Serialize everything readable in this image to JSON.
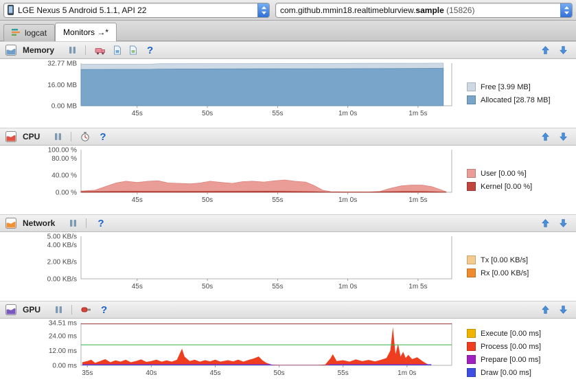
{
  "help_label": "?",
  "topbar": {
    "device": "LGE Nexus 5 Android 5.1.1, API 22",
    "process_prefix": "com.github.mmin18.realtimeblurview.",
    "process_bold": "sample",
    "process_suffix": " (15826)"
  },
  "tabs": [
    {
      "label": "logcat"
    },
    {
      "label": "Monitors →*"
    }
  ],
  "panels": [
    {
      "title": "Memory",
      "accent": "#6f9fc8",
      "toolbar_icons": [
        "pause-icon",
        "initiate-gc-icon",
        "dump-java-heap-icon",
        "allocation-tracking-icon",
        "help-icon"
      ],
      "legend": [
        {
          "label": "Free [3.99 MB]",
          "color": "#cdd9e4"
        },
        {
          "label": "Allocated [28.78 MB]",
          "color": "#78a5c9"
        }
      ]
    },
    {
      "title": "CPU",
      "accent": "#e05045",
      "toolbar_icons": [
        "pause-icon",
        "method-trace-icon",
        "help-icon"
      ],
      "legend": [
        {
          "label": "User [0.00 %]",
          "color": "#ea9c96"
        },
        {
          "label": "Kernel [0.00 %]",
          "color": "#c2453d"
        }
      ]
    },
    {
      "title": "Network",
      "accent": "#f2903a",
      "toolbar_icons": [
        "pause-icon",
        "help-icon"
      ],
      "legend": [
        {
          "label": "Tx [0.00 KB/s]",
          "color": "#f5ca8e"
        },
        {
          "label": "Rx [0.00 KB/s]",
          "color": "#ef8a2e"
        }
      ]
    },
    {
      "title": "GPU",
      "accent": "#7b57c0",
      "toolbar_icons": [
        "pause-icon",
        "gpu-record-icon",
        "help-icon"
      ],
      "legend": [
        {
          "label": "Execute [0.00 ms]",
          "color": "#f0b400"
        },
        {
          "label": "Process [0.00 ms]",
          "color": "#ee3d1f"
        },
        {
          "label": "Prepare [0.00 ms]",
          "color": "#a020c0"
        },
        {
          "label": "Draw [0.00 ms]",
          "color": "#3d4ee0"
        }
      ]
    }
  ],
  "chart_data": [
    {
      "type": "area",
      "title": "Memory",
      "ylabel": "MB",
      "xlim": [
        41,
        67.4
      ],
      "ylim": [
        0,
        32.77
      ],
      "yticks": [
        {
          "v": 32.77,
          "label": "32.77 MB"
        },
        {
          "v": 16,
          "label": "16.00 MB"
        },
        {
          "v": 0,
          "label": "0.00 MB"
        }
      ],
      "xticks": [
        {
          "v": 45,
          "label": "45s"
        },
        {
          "v": 50,
          "label": "50s"
        },
        {
          "v": 55,
          "label": "55s"
        },
        {
          "v": 60,
          "label": "1m 0s"
        },
        {
          "v": 65,
          "label": "1m 5s"
        }
      ],
      "series": [
        {
          "name": "Free (total)",
          "color": "#cdd9e4",
          "stroke": "#a9bccb",
          "points": [
            [
              41,
              31.9
            ],
            [
              44,
              32.0
            ],
            [
              46,
              32.05
            ],
            [
              46.6,
              32.4
            ],
            [
              50,
              32.45
            ],
            [
              54,
              32.5
            ],
            [
              58,
              32.55
            ],
            [
              62,
              32.65
            ],
            [
              65,
              32.72
            ],
            [
              66.8,
              32.77
            ]
          ]
        },
        {
          "name": "Allocated",
          "color": "#78a5c9",
          "stroke": "#5e8cb2",
          "points": [
            [
              41,
              27.9
            ],
            [
              44,
              28.0
            ],
            [
              46,
              28.05
            ],
            [
              46.6,
              28.25
            ],
            [
              50,
              28.35
            ],
            [
              54,
              28.45
            ],
            [
              58,
              28.5
            ],
            [
              62,
              28.6
            ],
            [
              65,
              28.7
            ],
            [
              66.8,
              28.78
            ]
          ]
        }
      ],
      "hlines": []
    },
    {
      "type": "area",
      "title": "CPU",
      "ylabel": "%",
      "xlim": [
        41,
        67.4
      ],
      "ylim": [
        0,
        100
      ],
      "yticks": [
        {
          "v": 100,
          "label": "100.00 %"
        },
        {
          "v": 80,
          "label": "80.00 %"
        },
        {
          "v": 40,
          "label": "40.00 %"
        },
        {
          "v": 0,
          "label": "0.00 %"
        }
      ],
      "xticks": [
        {
          "v": 45,
          "label": "45s"
        },
        {
          "v": 50,
          "label": "50s"
        },
        {
          "v": 55,
          "label": "55s"
        },
        {
          "v": 60,
          "label": "1m 0s"
        },
        {
          "v": 65,
          "label": "1m 5s"
        }
      ],
      "series": [
        {
          "name": "User",
          "color": "#ea9c96",
          "stroke": "#dd837c",
          "points": [
            [
              41,
              3
            ],
            [
              42,
              5
            ],
            [
              42.8,
              14
            ],
            [
              43.5,
              22
            ],
            [
              44.2,
              26
            ],
            [
              45,
              23
            ],
            [
              45.8,
              26
            ],
            [
              46.5,
              27
            ],
            [
              47.2,
              22
            ],
            [
              48,
              21
            ],
            [
              48.8,
              20
            ],
            [
              49.5,
              22
            ],
            [
              50.2,
              26
            ],
            [
              51,
              23
            ],
            [
              51.8,
              21
            ],
            [
              52.5,
              25
            ],
            [
              53.2,
              26
            ],
            [
              54,
              24
            ],
            [
              54.8,
              27
            ],
            [
              55.5,
              29
            ],
            [
              56.2,
              26
            ],
            [
              57,
              24
            ],
            [
              57.6,
              16
            ],
            [
              58.2,
              5
            ],
            [
              58.8,
              1.5
            ],
            [
              60,
              0.8
            ],
            [
              61.5,
              0.8
            ],
            [
              62.3,
              2
            ],
            [
              63,
              9
            ],
            [
              63.8,
              15
            ],
            [
              64.5,
              17
            ],
            [
              65.3,
              17
            ],
            [
              66,
              13
            ],
            [
              66.6,
              6
            ],
            [
              67,
              1.5
            ]
          ]
        },
        {
          "name": "Kernel",
          "color": "#c2453d",
          "stroke": "#a83830",
          "points": [
            [
              41,
              1.5
            ],
            [
              44,
              2.2
            ],
            [
              48,
              2
            ],
            [
              52,
              2.3
            ],
            [
              55,
              2.4
            ],
            [
              57.5,
              1.5
            ],
            [
              58.5,
              0.5
            ],
            [
              61.5,
              0.5
            ],
            [
              62.5,
              1.2
            ],
            [
              64,
              2
            ],
            [
              65.5,
              1.8
            ],
            [
              66.5,
              0.8
            ],
            [
              67,
              0.3
            ]
          ]
        }
      ],
      "hlines": []
    },
    {
      "type": "area",
      "title": "Network",
      "ylabel": "KB/s",
      "xlim": [
        41,
        67.4
      ],
      "ylim": [
        0,
        5
      ],
      "yticks": [
        {
          "v": 5,
          "label": "5.00 KB/s"
        },
        {
          "v": 4,
          "label": "4.00 KB/s"
        },
        {
          "v": 2,
          "label": "2.00 KB/s"
        },
        {
          "v": 0,
          "label": "0.00 KB/s"
        }
      ],
      "xticks": [
        {
          "v": 45,
          "label": "45s"
        },
        {
          "v": 50,
          "label": "50s"
        },
        {
          "v": 55,
          "label": "55s"
        },
        {
          "v": 60,
          "label": "1m 0s"
        },
        {
          "v": 65,
          "label": "1m 5s"
        }
      ],
      "series": [
        {
          "name": "Tx",
          "color": "#f5ca8e",
          "stroke": "none",
          "points": [
            [
              41,
              0
            ],
            [
              67,
              0
            ]
          ]
        },
        {
          "name": "Rx",
          "color": "#ef8a2e",
          "stroke": "none",
          "points": [
            [
              41,
              0
            ],
            [
              67,
              0
            ]
          ]
        }
      ],
      "hlines": []
    },
    {
      "type": "area",
      "title": "GPU",
      "ylabel": "ms",
      "xlim": [
        34.5,
        63.5
      ],
      "ylim": [
        0,
        34.51
      ],
      "yticks": [
        {
          "v": 34.51,
          "label": "34.51 ms"
        },
        {
          "v": 24,
          "label": "24.00 ms"
        },
        {
          "v": 12,
          "label": "12.00 ms"
        },
        {
          "v": 0,
          "label": "0.00 ms"
        }
      ],
      "xticks": [
        {
          "v": 35,
          "label": "35s"
        },
        {
          "v": 40,
          "label": "40s"
        },
        {
          "v": 45,
          "label": "45s"
        },
        {
          "v": 50,
          "label": "50s"
        },
        {
          "v": 55,
          "label": "55s"
        },
        {
          "v": 60,
          "label": "1m 0s"
        }
      ],
      "series": [
        {
          "name": "Execute",
          "color": "#f0b400",
          "stroke": "none",
          "points": [
            [
              34.6,
              0
            ],
            [
              61.9,
              0
            ]
          ]
        },
        {
          "name": "Process",
          "color": "#ee3d1f",
          "stroke": "none",
          "points": [
            [
              34.6,
              2.5
            ],
            [
              35,
              3.5
            ],
            [
              35.3,
              4.5
            ],
            [
              35.6,
              2
            ],
            [
              36,
              3.5
            ],
            [
              36.4,
              5
            ],
            [
              36.8,
              2.5
            ],
            [
              37.2,
              4
            ],
            [
              37.6,
              3
            ],
            [
              38,
              4.5
            ],
            [
              38.4,
              2.5
            ],
            [
              38.8,
              3.5
            ],
            [
              39.2,
              4.8
            ],
            [
              39.6,
              2.8
            ],
            [
              40,
              3.5
            ],
            [
              40.4,
              4.6
            ],
            [
              40.8,
              3
            ],
            [
              41.2,
              4
            ],
            [
              41.6,
              3
            ],
            [
              42,
              4.5
            ],
            [
              42.4,
              13.5
            ],
            [
              42.6,
              7
            ],
            [
              43,
              3.5
            ],
            [
              43.4,
              4.5
            ],
            [
              43.8,
              3
            ],
            [
              44.2,
              4.2
            ],
            [
              44.6,
              3.2
            ],
            [
              45,
              4.6
            ],
            [
              45.4,
              3
            ],
            [
              46,
              4.2
            ],
            [
              46.4,
              3.2
            ],
            [
              46.8,
              4.6
            ],
            [
              47.2,
              3
            ],
            [
              47.6,
              4.4
            ],
            [
              48,
              5.5
            ],
            [
              48.4,
              7.2
            ],
            [
              48.7,
              4
            ],
            [
              49,
              2
            ],
            [
              49.4,
              0.6
            ],
            [
              50,
              0.4
            ],
            [
              51,
              0.4
            ],
            [
              52,
              0.4
            ],
            [
              53,
              0.4
            ],
            [
              53.6,
              0.6
            ],
            [
              54,
              5.5
            ],
            [
              54.2,
              9
            ],
            [
              54.5,
              3.5
            ],
            [
              55,
              4.2
            ],
            [
              55.5,
              3
            ],
            [
              56,
              4.8
            ],
            [
              56.5,
              3.4
            ],
            [
              57,
              4.4
            ],
            [
              57.5,
              3.2
            ],
            [
              58,
              4.6
            ],
            [
              58.4,
              6
            ],
            [
              58.7,
              12
            ],
            [
              58.9,
              31
            ],
            [
              59.1,
              9
            ],
            [
              59.3,
              17.5
            ],
            [
              59.5,
              7
            ],
            [
              59.7,
              11
            ],
            [
              59.9,
              6
            ],
            [
              60.1,
              8.5
            ],
            [
              60.4,
              5
            ],
            [
              60.8,
              6.5
            ],
            [
              61.2,
              3.5
            ],
            [
              61.6,
              1
            ],
            [
              61.9,
              0.4
            ]
          ]
        },
        {
          "name": "Prepare",
          "color": "#a020c0",
          "stroke": "none",
          "points": [
            [
              34.6,
              0.9
            ],
            [
              49.3,
              0.9
            ],
            [
              49.6,
              0.15
            ],
            [
              53.8,
              0.15
            ],
            [
              54,
              0.9
            ],
            [
              61.9,
              0.9
            ]
          ]
        },
        {
          "name": "Draw",
          "color": "#3d4ee0",
          "stroke": "none",
          "points": [
            [
              34.6,
              0.5
            ],
            [
              49.3,
              0.5
            ],
            [
              49.6,
              0.1
            ],
            [
              53.8,
              0.1
            ],
            [
              54,
              0.5
            ],
            [
              61.9,
              0.5
            ]
          ]
        }
      ],
      "hlines": [
        {
          "y": 16.67,
          "color": "#2fb344"
        },
        {
          "y": 33.6,
          "color": "#993333"
        }
      ]
    }
  ]
}
